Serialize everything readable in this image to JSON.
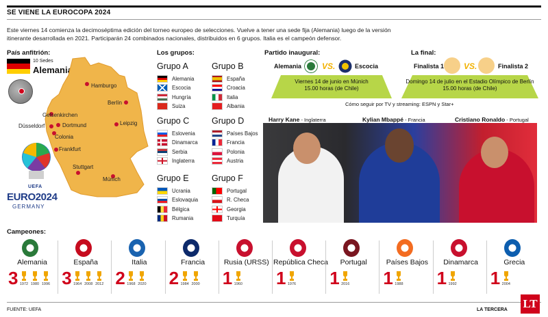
{
  "header": {
    "title": "SE VIENE LA EUROCOPA 2024",
    "intro": "Este viernes 14 comienza la decimoséptima edición del torneo europeo de selecciones. Vuelve a tener una sede fija (Alemania) luego de la versión itinerante desarrollada en 2021. Participarán 24 combinados nacionales, distribuidos en 6 grupos. Italia es el campeón defensor."
  },
  "host": {
    "label": "País anfitrión:",
    "sedes": "10 Sedes",
    "country": "Alemania",
    "cities": [
      "Hamburgo",
      "Berlín",
      "Gelsenkirchen",
      "Dortmund",
      "Düsseldorf",
      "Colonia",
      "Leipzig",
      "Frankfurt",
      "Stuttgart",
      "Múnich"
    ],
    "logo": {
      "uefa": "UEFA",
      "name": "EURO2024",
      "country": "GERMANY"
    }
  },
  "groups": {
    "label": "Los grupos:",
    "items": [
      {
        "name": "Grupo A",
        "teams": [
          "Alemania",
          "Escocia",
          "Hungría",
          "Suiza"
        ]
      },
      {
        "name": "Grupo B",
        "teams": [
          "España",
          "Croacia",
          "Italia",
          "Albania"
        ]
      },
      {
        "name": "Grupo C",
        "teams": [
          "Eslovenia",
          "Dinamarca",
          "Serbia",
          "Inglaterra"
        ]
      },
      {
        "name": "Grupo D",
        "teams": [
          "Países Bajos",
          "Francia",
          "Polonia",
          "Austria"
        ]
      },
      {
        "name": "Grupo E",
        "teams": [
          "Ucrania",
          "Eslovaquia",
          "Bélgica",
          "Rumania"
        ]
      },
      {
        "name": "Grupo F",
        "teams": [
          "Portugal",
          "R. Checa",
          "Georgia",
          "Turquía"
        ]
      }
    ]
  },
  "opening": {
    "label": "Partido inaugural:",
    "home": "Alemania",
    "away": "Escocia",
    "vs": "VS.",
    "date": "Viernes 14 de junio en Múnich",
    "time": "15.00 horas (de Chile)"
  },
  "final": {
    "label": "La final:",
    "home": "Finalista 1",
    "away": "Finalista 2",
    "vs": "VS.",
    "date": "Domingo 14 de julio en el Estadio Olímpico de Berlín",
    "time": "15.00 horas (de Chile)"
  },
  "streaming": "Cómo seguir por TV y streaming: ESPN y Star+",
  "players": [
    {
      "name": "Harry Kane",
      "country": " - Inglaterra"
    },
    {
      "name": "Kylian Mbappé",
      "country": " - Francia"
    },
    {
      "name": "Cristiano Ronaldo",
      "country": " - Portugal"
    }
  ],
  "champions": {
    "label": "Campeones:",
    "items": [
      {
        "country": "Alemania",
        "count": "3",
        "years": [
          "1972",
          "1980",
          "1996"
        ]
      },
      {
        "country": "España",
        "count": "3",
        "years": [
          "1964",
          "2008",
          "2012"
        ]
      },
      {
        "country": "Italia",
        "count": "2",
        "years": [
          "1968",
          "2020"
        ]
      },
      {
        "country": "Francia",
        "count": "2",
        "years": [
          "1984",
          "2000"
        ]
      },
      {
        "country": "Rusia (URSS)",
        "count": "1",
        "years": [
          "1960"
        ]
      },
      {
        "country": "República Checa",
        "count": "1",
        "years": [
          "1976"
        ]
      },
      {
        "country": "Portugal",
        "count": "1",
        "years": [
          "2016"
        ]
      },
      {
        "country": "Países Bajos",
        "count": "1",
        "years": [
          "1988"
        ]
      },
      {
        "country": "Dinamarca",
        "count": "1",
        "years": [
          "1992"
        ]
      },
      {
        "country": "Grecia",
        "count": "1",
        "years": [
          "2004"
        ]
      }
    ]
  },
  "footer": {
    "source": "FUENTE: UEFA",
    "brand": "LA TERCERA",
    "logo": "LT"
  },
  "colors": {
    "accent": "#d0021b",
    "map": "#f0b54a",
    "pitch": "#b7d648",
    "trophy": "#f0a500",
    "euro_blue": "#1f3c88"
  }
}
